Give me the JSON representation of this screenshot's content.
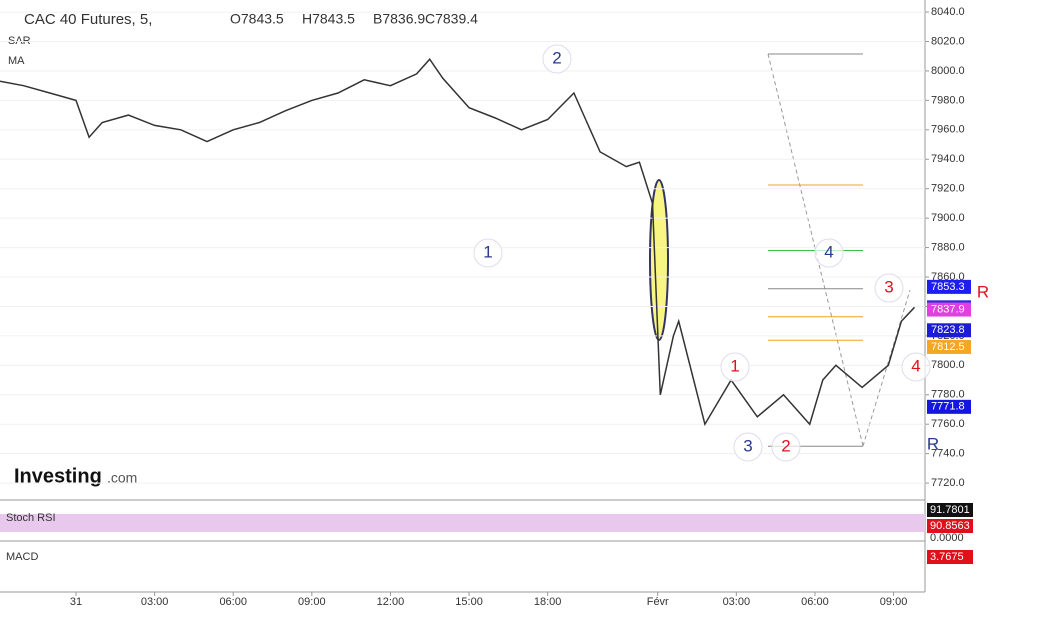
{
  "chart_data": {
    "type": "line",
    "title": "CAC 40 Futures, 5,",
    "ohlc": [
      "O7843.5",
      "H7843.5",
      "B7836.9",
      "C7839.4"
    ],
    "indicators": [
      "SAR",
      "MA"
    ],
    "logo": [
      "Investing",
      ".com"
    ],
    "x": [
      -2.9,
      -2,
      -1,
      0,
      0.5,
      1,
      2,
      3,
      4,
      5,
      6,
      7,
      8,
      9,
      10,
      11,
      12,
      13,
      13.5,
      14,
      15,
      16,
      17,
      18,
      19,
      19.5,
      20,
      21,
      21.5,
      22,
      22.3,
      22.8,
      23,
      24,
      25,
      26,
      27,
      28,
      28.5,
      29,
      30,
      31,
      31.5,
      32
    ],
    "series": [
      {
        "color": "#333333",
        "values": [
          7993,
          7990,
          7985,
          7980,
          7955,
          7965,
          7970,
          7963,
          7960,
          7952,
          7960,
          7965,
          7973,
          7980,
          7985,
          7994,
          7990,
          7998,
          8008,
          7995,
          7975,
          7968,
          7960,
          7967,
          7985,
          7965,
          7945,
          7935,
          7938,
          7910,
          7780,
          7820,
          7830,
          7760,
          7790,
          7765,
          7780,
          7760,
          7790,
          7800,
          7785,
          7800,
          7830,
          7839.4
        ]
      }
    ],
    "xlim": [
      -2.9,
      32.4
    ],
    "xticks": [
      {
        "value": 0,
        "label": "31"
      },
      {
        "value": 3,
        "label": "03:00"
      },
      {
        "value": 6,
        "label": "06:00"
      },
      {
        "value": 9,
        "label": "09:00"
      },
      {
        "value": 12,
        "label": "12:00"
      },
      {
        "value": 15,
        "label": "15:00"
      },
      {
        "value": 18,
        "label": "18:00"
      },
      {
        "value": 22.2,
        "label": "Févr"
      },
      {
        "value": 25.2,
        "label": "03:00"
      },
      {
        "value": 28.2,
        "label": "06:00"
      },
      {
        "value": 31.2,
        "label": "09:00"
      }
    ],
    "ylim": [
      7708.5,
      8048.2
    ],
    "yticks": [
      {
        "value": 7720,
        "label": "7720.0"
      },
      {
        "value": 7740,
        "label": "7740.0"
      },
      {
        "value": 7760,
        "label": "7760.0"
      },
      {
        "value": 7780,
        "label": "7780.0"
      },
      {
        "value": 7800,
        "label": "7800.0"
      },
      {
        "value": 7820,
        "label": "7820.0"
      },
      {
        "value": 7840,
        "label": "7840.0"
      },
      {
        "value": 7860,
        "label": "7860.0"
      },
      {
        "value": 7880,
        "label": "7880.0"
      },
      {
        "value": 7900,
        "label": "7900.0"
      },
      {
        "value": 7920,
        "label": "7920.0"
      },
      {
        "value": 7940,
        "label": "7940.0"
      },
      {
        "value": 7960,
        "label": "7960.0"
      },
      {
        "value": 7980,
        "label": "7980.0"
      },
      {
        "value": 8000,
        "label": "8000.0"
      },
      {
        "value": 8020,
        "label": "8020.0"
      },
      {
        "value": 8040,
        "label": "8040.0"
      }
    ],
    "levels": [
      {
        "value": 8011.5,
        "color": "#888888"
      },
      {
        "value": 7922.5,
        "color": "#f0a020"
      },
      {
        "value": 7878,
        "color": "#40c040"
      },
      {
        "value": 7852,
        "color": "#888888"
      },
      {
        "value": 7833,
        "color": "#f0a020"
      },
      {
        "value": 7817,
        "color": "#f0a020"
      },
      {
        "value": 7745,
        "color": "#888888"
      }
    ],
    "price_labels": [
      {
        "value": 7853.3,
        "color": "#1e1ef0"
      },
      {
        "value": 7839.4,
        "color": "#2a2ad8"
      },
      {
        "value": 7837.9,
        "color": "#e040e0"
      },
      {
        "value": 7823.8,
        "color": "#1c1cd6"
      },
      {
        "value": 7812.5,
        "color": "#f5a623"
      },
      {
        "value": 7771.8,
        "color": "#1515e0"
      }
    ],
    "wave_labels": [
      "2",
      "1",
      "4",
      "3",
      "1",
      "2",
      "3",
      "4",
      "R",
      "R"
    ],
    "stoch": {
      "name": "Stoch RSI",
      "labels": [
        {
          "value": 91.7801,
          "color": "#111111"
        },
        {
          "value": 90.8563,
          "color": "#e0101a"
        },
        {
          "value": 0,
          "label": "0.0000"
        }
      ]
    },
    "macd": {
      "name": "MACD",
      "labels": [
        {
          "value": 3.7675,
          "color": "#e0101a"
        }
      ]
    }
  }
}
